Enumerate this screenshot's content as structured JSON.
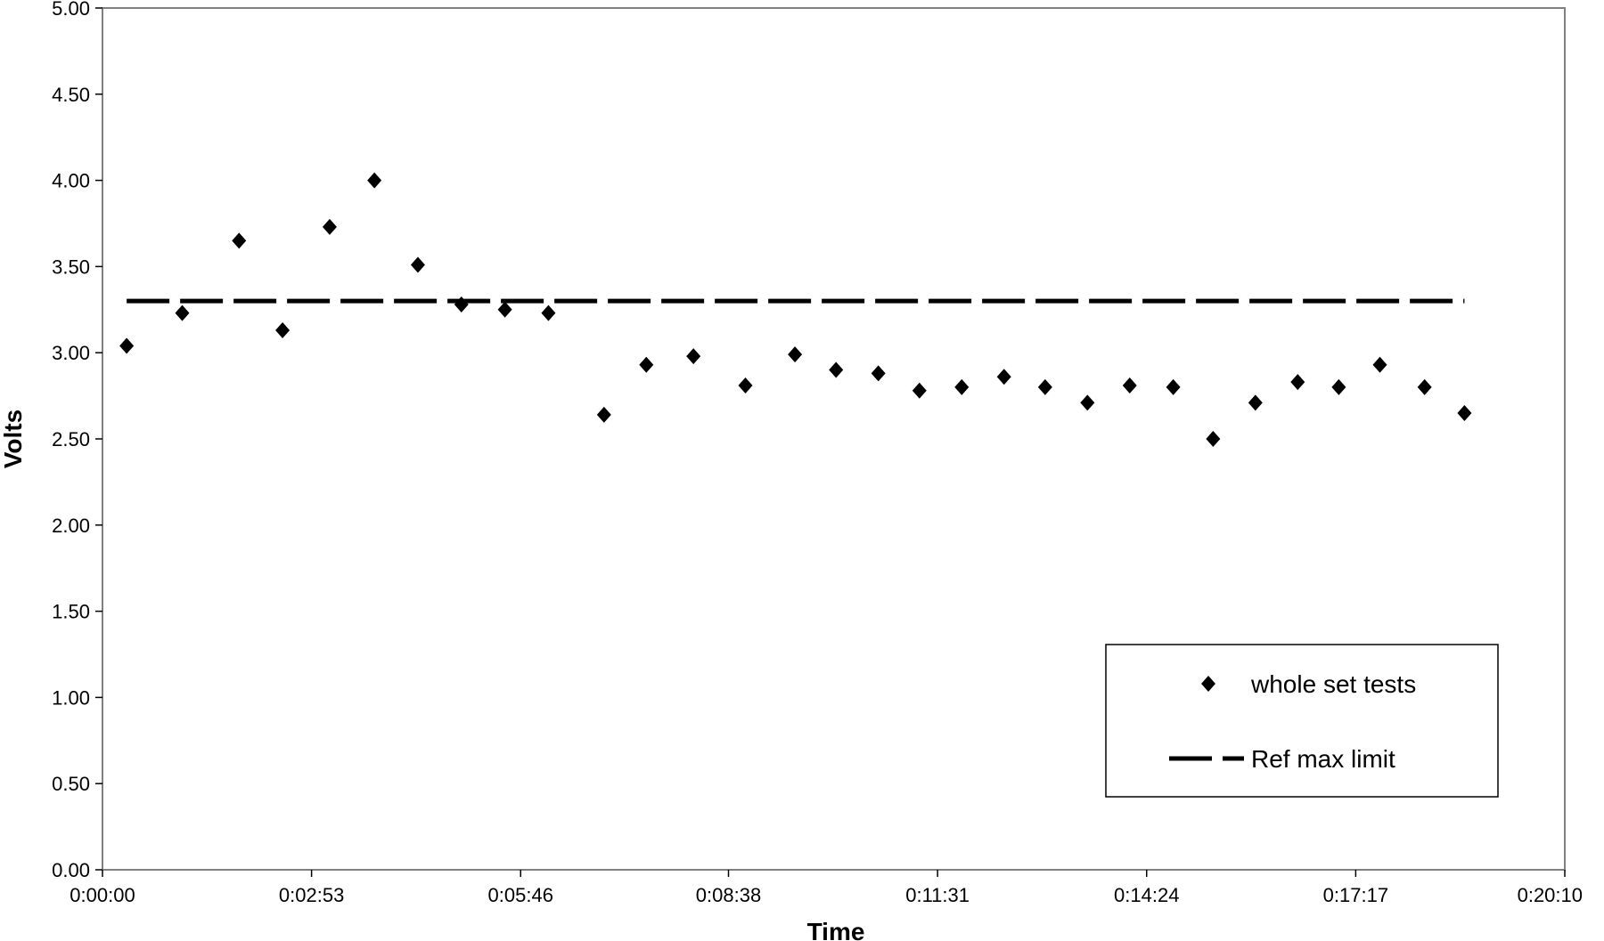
{
  "chart_data": {
    "type": "scatter",
    "title": "",
    "xlabel": "Time",
    "ylabel": "Volts",
    "xlim": [
      "0:00:00",
      "0:20:10"
    ],
    "ylim": [
      0,
      5
    ],
    "x_ticks": [
      "0:00:00",
      "0:02:53",
      "0:05:46",
      "0:08:38",
      "0:11:31",
      "0:14:24",
      "0:17:17",
      "0:20:10"
    ],
    "y_ticks": [
      "0.00",
      "0.50",
      "1.00",
      "1.50",
      "2.00",
      "2.50",
      "3.00",
      "3.50",
      "4.00",
      "4.50",
      "5.00"
    ],
    "grid": false,
    "legend_position": "bottom-right",
    "series": [
      {
        "name": "whole set tests",
        "kind": "scatter",
        "marker": "diamond",
        "color": "#000000",
        "x": [
          "0:00:20",
          "0:01:06",
          "0:01:53",
          "0:02:29",
          "0:03:08",
          "0:03:45",
          "0:04:21",
          "0:04:57",
          "0:05:33",
          "0:06:09",
          "0:06:55",
          "0:07:30",
          "0:08:09",
          "0:08:52",
          "0:09:33",
          "0:10:07",
          "0:10:42",
          "0:11:16",
          "0:11:51",
          "0:12:26",
          "0:13:00",
          "0:13:35",
          "0:14:10",
          "0:14:46",
          "0:15:19",
          "0:15:54",
          "0:16:29",
          "0:17:03",
          "0:17:37",
          "0:18:14",
          "0:18:47"
        ],
        "y": [
          3.04,
          3.23,
          3.65,
          3.13,
          3.73,
          4.0,
          3.51,
          3.28,
          3.25,
          3.23,
          2.64,
          2.93,
          2.98,
          2.81,
          2.99,
          2.9,
          2.88,
          2.78,
          2.8,
          2.86,
          2.8,
          2.71,
          2.81,
          2.8,
          2.5,
          2.71,
          2.83,
          2.8,
          2.93,
          2.8,
          2.65
        ]
      },
      {
        "name": "Ref max limit",
        "kind": "line",
        "dash": "dashed",
        "color": "#000000",
        "x": [
          "0:00:20",
          "0:18:47"
        ],
        "y": [
          3.3,
          3.3
        ]
      }
    ]
  }
}
